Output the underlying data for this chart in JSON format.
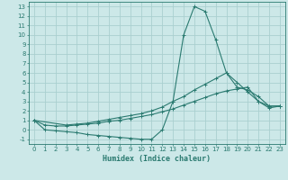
{
  "xlabel": "Humidex (Indice chaleur)",
  "xlim": [
    -0.5,
    23.5
  ],
  "ylim": [
    -1.5,
    13.5
  ],
  "xticks": [
    0,
    1,
    2,
    3,
    4,
    5,
    6,
    7,
    8,
    9,
    10,
    11,
    12,
    13,
    14,
    15,
    16,
    17,
    18,
    19,
    20,
    21,
    22,
    23
  ],
  "yticks": [
    -1,
    0,
    1,
    2,
    3,
    4,
    5,
    6,
    7,
    8,
    9,
    10,
    11,
    12,
    13
  ],
  "background_color": "#cce8e8",
  "grid_color": "#aacfcf",
  "line_color": "#2a7a70",
  "line1_x": [
    0,
    1,
    2,
    3,
    4,
    5,
    6,
    7,
    8,
    9,
    10,
    11,
    12,
    13,
    14,
    15,
    16,
    17,
    18,
    19,
    20,
    21,
    22,
    23
  ],
  "line1_y": [
    1,
    0,
    -0.1,
    -0.2,
    -0.3,
    -0.5,
    -0.6,
    -0.7,
    -0.8,
    -0.9,
    -1,
    -1,
    0,
    3,
    10,
    13,
    12.5,
    9.5,
    6,
    5,
    4,
    3,
    2.5,
    2.5
  ],
  "line2_x": [
    0,
    3,
    4,
    5,
    6,
    7,
    8,
    9,
    10,
    11,
    12,
    13,
    14,
    15,
    16,
    17,
    18,
    19,
    20,
    21,
    22,
    23
  ],
  "line2_y": [
    1,
    0.5,
    0.6,
    0.7,
    0.9,
    1.1,
    1.3,
    1.5,
    1.7,
    2.0,
    2.4,
    3.0,
    3.5,
    4.2,
    4.8,
    5.4,
    6,
    4.5,
    4.2,
    3.5,
    2.5,
    2.5
  ],
  "line3_x": [
    0,
    1,
    2,
    3,
    4,
    5,
    6,
    7,
    8,
    9,
    10,
    11,
    12,
    13,
    14,
    15,
    16,
    17,
    18,
    19,
    20,
    21,
    22,
    23
  ],
  "line3_y": [
    1,
    0.5,
    0.4,
    0.4,
    0.5,
    0.6,
    0.7,
    0.9,
    1.0,
    1.2,
    1.4,
    1.6,
    1.9,
    2.2,
    2.6,
    3.0,
    3.4,
    3.8,
    4.1,
    4.3,
    4.5,
    3.0,
    2.3,
    2.5
  ]
}
